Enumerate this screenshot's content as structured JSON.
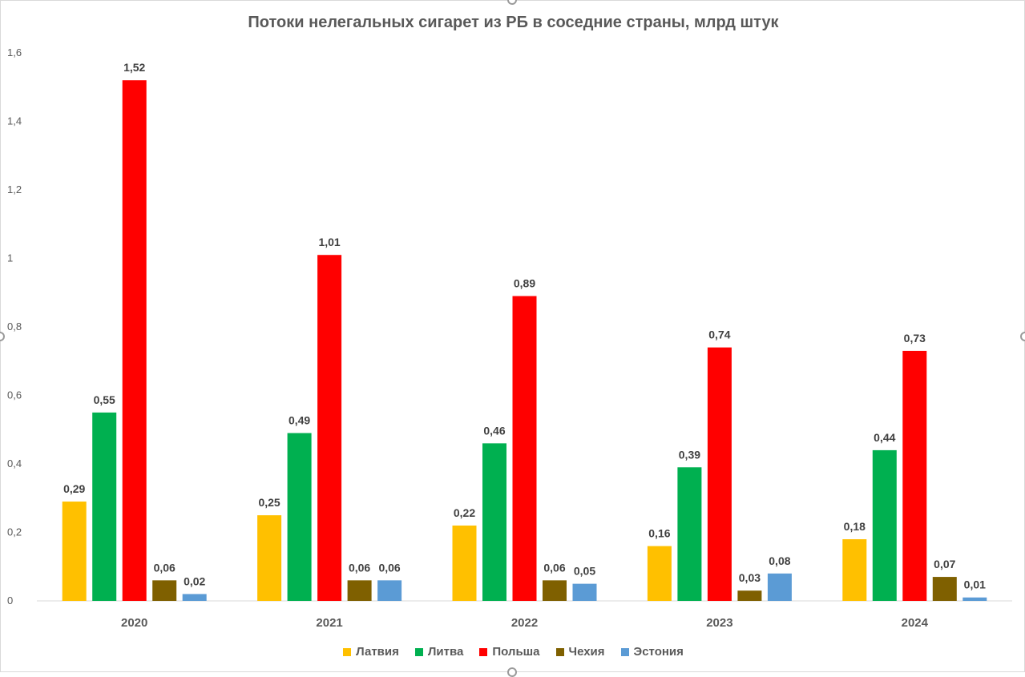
{
  "chart_data": {
    "type": "bar",
    "title": "Потоки нелегальных сигарет из РБ в соседние страны, млрд штук",
    "xlabel": "",
    "ylabel": "",
    "categories": [
      "2020",
      "2021",
      "2022",
      "2023",
      "2024"
    ],
    "ylim": [
      0,
      1.6
    ],
    "yticks": [
      "0",
      "0,2",
      "0,4",
      "0,6",
      "0,8",
      "1",
      "1,2",
      "1,4",
      "1,6"
    ],
    "grid": false,
    "legend_position": "bottom",
    "series": [
      {
        "name": "Латвия",
        "color": "#FFC000",
        "values": [
          0.29,
          0.25,
          0.22,
          0.16,
          0.18
        ],
        "labels": [
          "0,29",
          "0,25",
          "0,22",
          "0,16",
          "0,18"
        ]
      },
      {
        "name": "Литва",
        "color": "#00B050",
        "values": [
          0.55,
          0.49,
          0.46,
          0.39,
          0.44
        ],
        "labels": [
          "0,55",
          "0,49",
          "0,46",
          "0,39",
          "0,44"
        ]
      },
      {
        "name": "Польша",
        "color": "#FF0000",
        "values": [
          1.52,
          1.01,
          0.89,
          0.74,
          0.73
        ],
        "labels": [
          "1,52",
          "1,01",
          "0,89",
          "0,74",
          "0,73"
        ]
      },
      {
        "name": "Чехия",
        "color": "#7F6000",
        "values": [
          0.06,
          0.06,
          0.06,
          0.03,
          0.07
        ],
        "labels": [
          "0,06",
          "0,06",
          "0,06",
          "0,03",
          "0,07"
        ]
      },
      {
        "name": "Эстония",
        "color": "#5B9BD5",
        "values": [
          0.02,
          0.06,
          0.05,
          0.08,
          0.01
        ],
        "labels": [
          "0,02",
          "0,06",
          "0,05",
          "0,08",
          "0,01"
        ]
      }
    ]
  }
}
